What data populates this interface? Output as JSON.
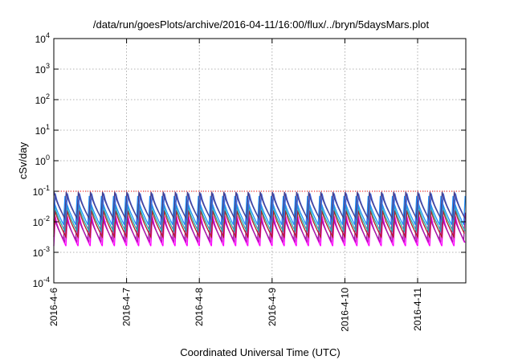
{
  "chart_data": {
    "type": "line",
    "title": "/data/run/goesPlots/archive/2016-04-11/16:00/flux/../bryn/5daysMars.plot",
    "xlabel": "Coordinated Universal Time (UTC)",
    "ylabel": "cSv/day",
    "yscale": "log",
    "ylim": [
      0.0001,
      10000
    ],
    "xlim": [
      "2016-04-06 00:00",
      "2016-04-11 16:00"
    ],
    "x_ticks": [
      "2016-4-6",
      "2016-4-7",
      "2016-4-8",
      "2016-4-9",
      "2016-4-10",
      "2016-4-11"
    ],
    "y_ticks": [
      {
        "value": 0.0001,
        "base": "10",
        "exp": "-4"
      },
      {
        "value": 0.001,
        "base": "10",
        "exp": "-3"
      },
      {
        "value": 0.01,
        "base": "10",
        "exp": "-2"
      },
      {
        "value": 0.1,
        "base": "10",
        "exp": "-1"
      },
      {
        "value": 1,
        "base": "10",
        "exp": "0"
      },
      {
        "value": 10,
        "base": "10",
        "exp": "1"
      },
      {
        "value": 100,
        "base": "10",
        "exp": "2"
      },
      {
        "value": 1000,
        "base": "10",
        "exp": "3"
      },
      {
        "value": 10000,
        "base": "10",
        "exp": "4"
      }
    ],
    "grid": true,
    "threshold": {
      "value": 0.1,
      "color": "#ff0000"
    },
    "sawtooth_period_hours": 4,
    "series": [
      {
        "color": "#ff00ff",
        "peak": 0.015,
        "trough": 0.0016
      },
      {
        "color": "#cc00cc",
        "peak": 0.018,
        "trough": 0.0021
      },
      {
        "color": "#a020a0",
        "peak": 0.02,
        "trough": 0.0026
      },
      {
        "color": "#b22222",
        "peak": 0.024,
        "trough": 0.0032
      },
      {
        "color": "#20b2aa",
        "peak": 0.04,
        "trough": 0.005
      },
      {
        "color": "#1e90ff",
        "peak": 0.07,
        "trough": 0.008
      },
      {
        "color": "#4169e1",
        "peak": 0.085,
        "trough": 0.011
      },
      {
        "color": "#483d8b",
        "peak": 0.095,
        "trough": 0.013
      }
    ]
  }
}
